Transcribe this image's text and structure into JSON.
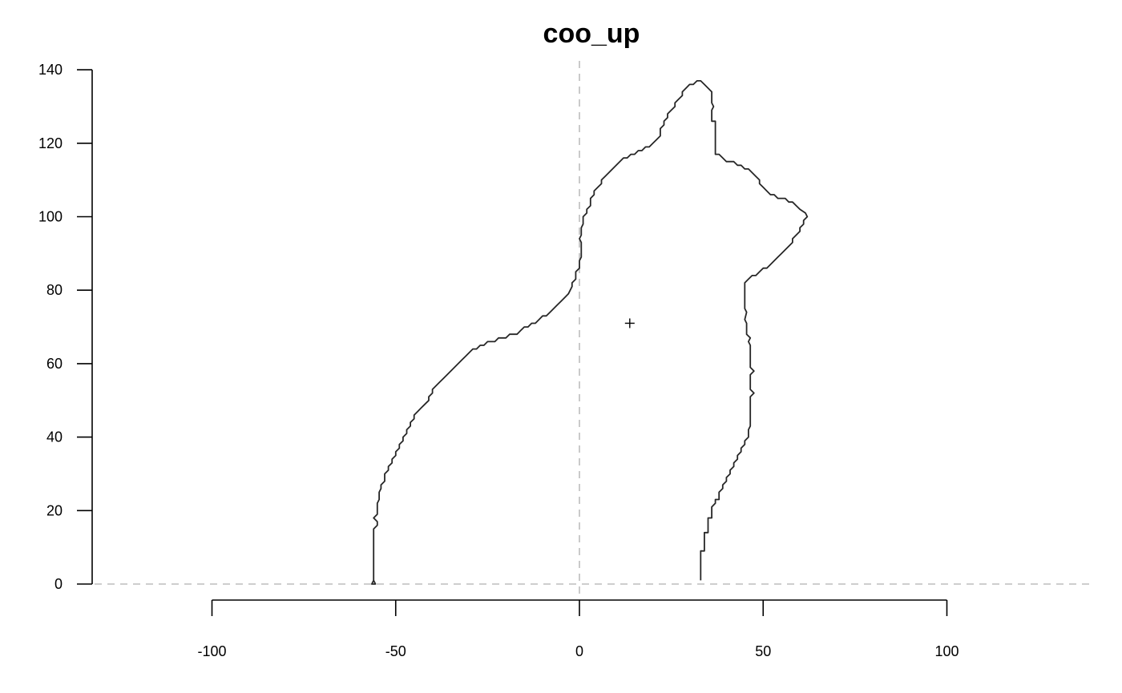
{
  "chart_data": {
    "type": "line",
    "title": "coo_up",
    "xlabel": "",
    "ylabel": "",
    "xlim": [
      -100,
      100
    ],
    "ylim": [
      0,
      140
    ],
    "x_ticks": [
      -100,
      -50,
      0,
      50,
      100
    ],
    "y_ticks": [
      0,
      20,
      40,
      60,
      80,
      100,
      120,
      140
    ],
    "grid": false,
    "reference_lines": {
      "x": 0,
      "y": 0,
      "style": "dashed",
      "color": "#bdbdbd"
    },
    "outline_color": "#262626",
    "centroid": {
      "x": 13.7,
      "y": 71
    },
    "series": [
      {
        "points": [
          [
            33,
            1
          ],
          [
            33,
            9
          ],
          [
            34,
            9
          ],
          [
            34,
            14
          ],
          [
            35,
            14
          ],
          [
            35,
            18
          ],
          [
            36,
            18
          ],
          [
            36,
            21
          ],
          [
            37,
            22
          ],
          [
            37,
            23
          ],
          [
            38,
            23
          ],
          [
            38,
            25
          ],
          [
            39,
            26
          ],
          [
            39,
            27
          ],
          [
            40,
            28
          ],
          [
            40,
            29
          ],
          [
            41,
            30
          ],
          [
            41,
            31
          ],
          [
            42,
            32
          ],
          [
            42,
            33
          ],
          [
            43,
            34
          ],
          [
            43,
            35
          ],
          [
            44,
            36
          ],
          [
            44,
            37
          ],
          [
            45,
            38
          ],
          [
            45,
            39
          ],
          [
            46,
            40
          ],
          [
            46,
            42
          ],
          [
            46.5,
            43
          ],
          [
            46.5,
            49
          ],
          [
            46.5,
            51
          ],
          [
            47.5,
            52
          ],
          [
            46.5,
            53
          ],
          [
            46.5,
            57
          ],
          [
            47.5,
            58
          ],
          [
            46.5,
            59
          ],
          [
            46.5,
            62
          ],
          [
            46.5,
            65
          ],
          [
            46,
            66
          ],
          [
            46.5,
            67
          ],
          [
            45.5,
            68
          ],
          [
            45.5,
            71
          ],
          [
            45,
            72
          ],
          [
            45.5,
            74
          ],
          [
            45,
            75
          ],
          [
            45,
            79
          ],
          [
            45,
            82
          ],
          [
            46,
            83
          ],
          [
            47,
            84
          ],
          [
            48,
            84
          ],
          [
            49,
            85
          ],
          [
            50,
            86
          ],
          [
            51,
            86
          ],
          [
            52,
            87
          ],
          [
            53,
            88
          ],
          [
            54,
            89
          ],
          [
            55,
            90
          ],
          [
            56,
            91
          ],
          [
            57,
            92
          ],
          [
            58,
            93
          ],
          [
            58,
            94
          ],
          [
            59,
            95
          ],
          [
            60,
            96
          ],
          [
            60,
            97
          ],
          [
            61,
            98
          ],
          [
            61,
            99
          ],
          [
            62,
            100
          ],
          [
            61.5,
            101
          ],
          [
            60,
            102
          ],
          [
            59,
            103
          ],
          [
            58,
            104
          ],
          [
            57,
            104
          ],
          [
            56,
            105
          ],
          [
            54,
            105
          ],
          [
            53,
            106
          ],
          [
            52,
            106
          ],
          [
            51,
            107
          ],
          [
            50,
            108
          ],
          [
            49,
            109
          ],
          [
            49,
            110
          ],
          [
            48,
            111
          ],
          [
            47,
            112
          ],
          [
            46,
            113
          ],
          [
            45,
            113
          ],
          [
            44,
            114
          ],
          [
            43,
            114
          ],
          [
            42,
            115
          ],
          [
            40,
            115
          ],
          [
            39,
            116
          ],
          [
            38,
            117
          ],
          [
            37,
            117
          ],
          [
            37,
            121
          ],
          [
            37,
            126
          ],
          [
            36,
            126
          ],
          [
            36,
            127
          ],
          [
            36,
            129
          ],
          [
            36.5,
            130
          ],
          [
            36,
            131
          ],
          [
            36,
            134
          ],
          [
            35,
            135
          ],
          [
            34,
            136
          ],
          [
            33,
            137
          ],
          [
            32,
            137
          ],
          [
            31,
            136
          ],
          [
            30,
            136
          ],
          [
            29,
            135
          ],
          [
            28,
            134
          ],
          [
            28,
            133
          ],
          [
            27,
            132
          ],
          [
            26,
            131
          ],
          [
            26,
            130
          ],
          [
            25,
            129
          ],
          [
            24,
            128
          ],
          [
            24,
            127
          ],
          [
            23,
            126
          ],
          [
            23,
            125
          ],
          [
            22,
            124
          ],
          [
            22,
            122
          ],
          [
            21,
            121
          ],
          [
            20,
            120
          ],
          [
            19,
            119
          ],
          [
            18,
            119
          ],
          [
            17,
            118
          ],
          [
            16,
            118
          ],
          [
            15,
            117
          ],
          [
            14,
            117
          ],
          [
            13,
            116
          ],
          [
            12,
            116
          ],
          [
            11,
            115
          ],
          [
            10,
            114
          ],
          [
            9,
            113
          ],
          [
            8,
            112
          ],
          [
            7,
            111
          ],
          [
            6,
            110
          ],
          [
            6,
            109
          ],
          [
            5,
            108
          ],
          [
            4,
            107
          ],
          [
            4,
            106
          ],
          [
            3,
            105
          ],
          [
            3,
            103
          ],
          [
            2,
            102
          ],
          [
            2,
            101
          ],
          [
            1,
            100
          ],
          [
            1,
            98
          ],
          [
            0.5,
            97
          ],
          [
            0.5,
            95
          ],
          [
            0,
            94
          ],
          [
            0.5,
            93
          ],
          [
            0.5,
            89
          ],
          [
            0,
            88
          ],
          [
            0,
            86
          ],
          [
            -1,
            85
          ],
          [
            -1,
            83
          ],
          [
            -2,
            82
          ],
          [
            -2,
            81
          ],
          [
            -2.5,
            80
          ],
          [
            -3,
            79
          ],
          [
            -4,
            78
          ],
          [
            -5,
            77
          ],
          [
            -6,
            76
          ],
          [
            -7,
            75
          ],
          [
            -8,
            74
          ],
          [
            -9,
            73
          ],
          [
            -10,
            73
          ],
          [
            -11,
            72
          ],
          [
            -12,
            71
          ],
          [
            -13,
            71
          ],
          [
            -14,
            70
          ],
          [
            -15,
            70
          ],
          [
            -16,
            69
          ],
          [
            -17,
            68
          ],
          [
            -19,
            68
          ],
          [
            -20,
            67
          ],
          [
            -22,
            67
          ],
          [
            -23,
            66
          ],
          [
            -25,
            66
          ],
          [
            -26,
            65
          ],
          [
            -27,
            65
          ],
          [
            -28,
            64
          ],
          [
            -29,
            64
          ],
          [
            -30,
            63
          ],
          [
            -31,
            62
          ],
          [
            -32,
            61
          ],
          [
            -33,
            60
          ],
          [
            -34,
            59
          ],
          [
            -35,
            58
          ],
          [
            -36,
            57
          ],
          [
            -37,
            56
          ],
          [
            -38,
            55
          ],
          [
            -39,
            54
          ],
          [
            -40,
            53
          ],
          [
            -40,
            52
          ],
          [
            -41,
            51
          ],
          [
            -41,
            50
          ],
          [
            -42,
            49
          ],
          [
            -43,
            48
          ],
          [
            -44,
            47
          ],
          [
            -45,
            46
          ],
          [
            -45,
            45
          ],
          [
            -46,
            44
          ],
          [
            -46,
            43
          ],
          [
            -47,
            42
          ],
          [
            -47,
            41
          ],
          [
            -48,
            40
          ],
          [
            -48,
            39
          ],
          [
            -49,
            38
          ],
          [
            -49,
            37
          ],
          [
            -50,
            36
          ],
          [
            -50,
            35
          ],
          [
            -51,
            34
          ],
          [
            -51,
            33
          ],
          [
            -52,
            32
          ],
          [
            -52,
            31
          ],
          [
            -53,
            30
          ],
          [
            -53,
            28
          ],
          [
            -54,
            27
          ],
          [
            -54,
            26
          ],
          [
            -54.5,
            25
          ],
          [
            -54.5,
            23
          ],
          [
            -55,
            22
          ],
          [
            -55,
            19
          ],
          [
            -56,
            18
          ],
          [
            -55,
            17
          ],
          [
            -55,
            16
          ],
          [
            -56,
            15
          ],
          [
            -56,
            10
          ],
          [
            -56,
            1
          ],
          [
            -56.5,
            0
          ],
          [
            -55.5,
            0
          ],
          [
            -56,
            1
          ]
        ]
      }
    ]
  }
}
